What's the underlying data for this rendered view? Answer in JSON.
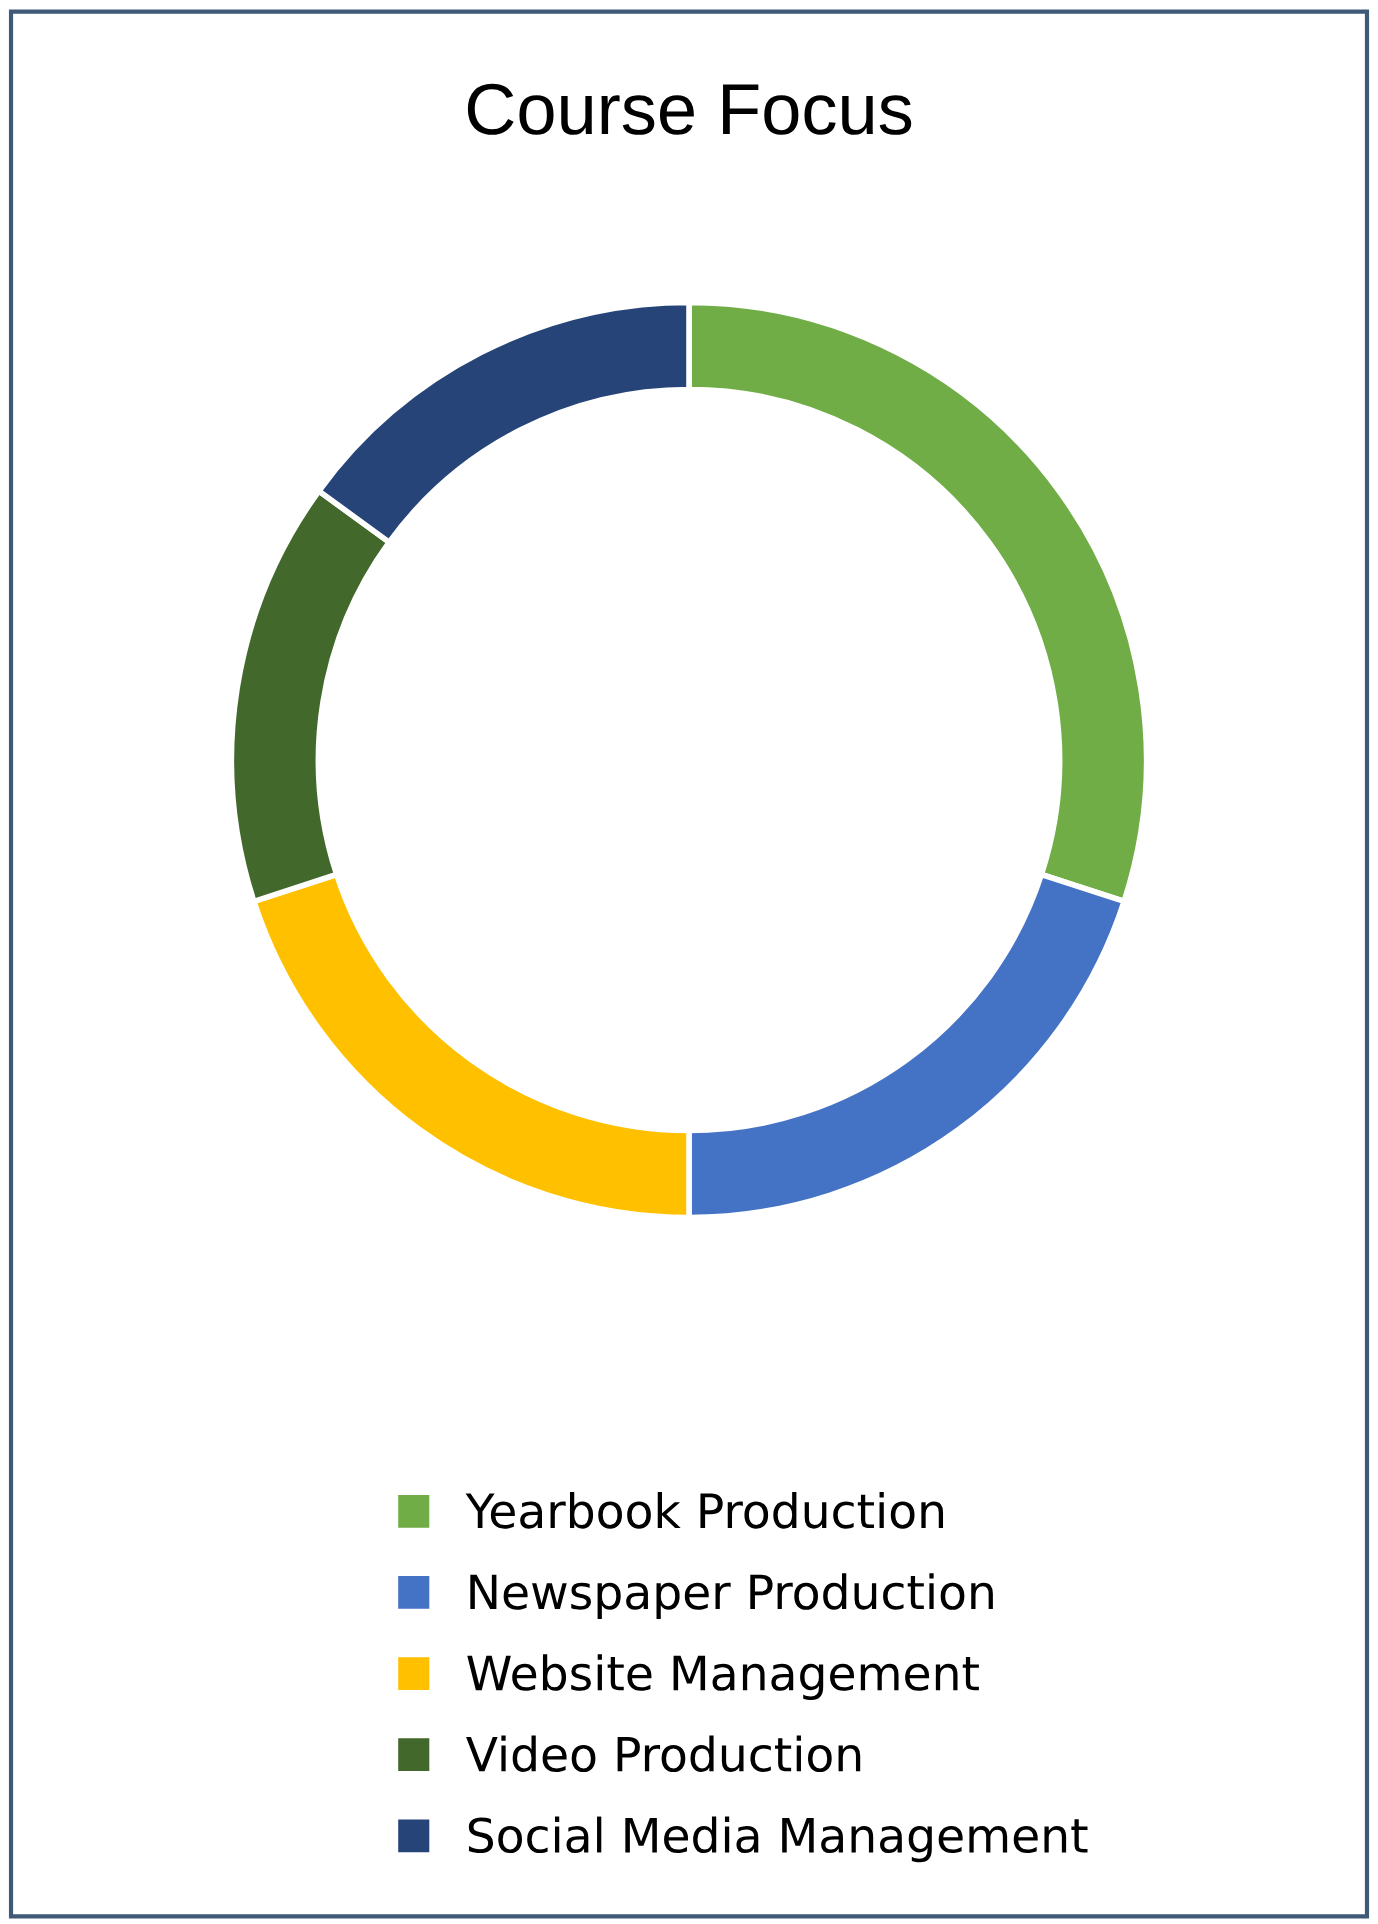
{
  "chart_data": {
    "type": "donut",
    "title": "Course Focus",
    "categories": [
      "Yearbook Production",
      "Newspaper Production",
      "Website Management",
      "Video Production",
      "Social Media Management"
    ],
    "values": [
      30,
      20,
      20,
      15,
      15
    ],
    "colors": [
      "#70ad47",
      "#4472c4",
      "#ffc000",
      "#43682b",
      "#264478"
    ],
    "legend": "bottom"
  }
}
